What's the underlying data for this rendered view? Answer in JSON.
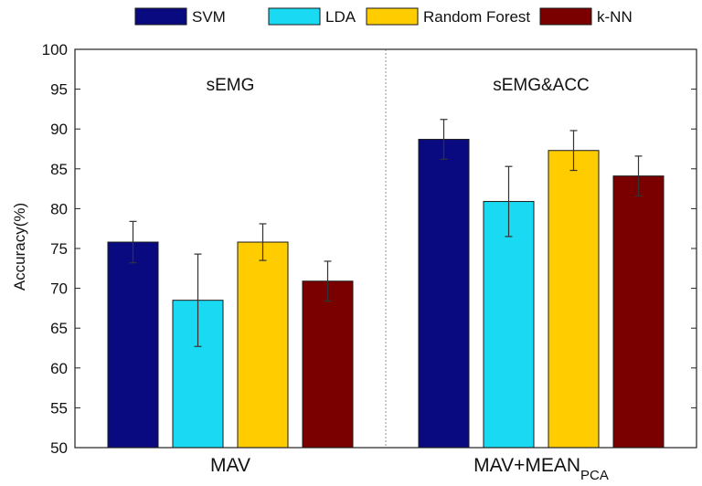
{
  "chart_data": {
    "type": "bar",
    "xlabel": "",
    "ylabel": "Accuracy(%)",
    "ylim": [
      50,
      100
    ],
    "yticks": [
      50,
      55,
      60,
      65,
      70,
      75,
      80,
      85,
      90,
      95,
      100
    ],
    "grid": false,
    "legend_position": "top",
    "panels": [
      {
        "title": "sEMG",
        "category": "MAV",
        "category_subscript": ""
      },
      {
        "title": "sEMG&ACC",
        "category": "MAV+MEAN",
        "category_subscript": "PCA"
      }
    ],
    "series": [
      {
        "name": "SVM",
        "color": "#0a0a80",
        "values": [
          75.8,
          88.7
        ],
        "errors": [
          2.6,
          2.5
        ]
      },
      {
        "name": "LDA",
        "color": "#1ad9f2",
        "values": [
          68.5,
          80.9
        ],
        "errors": [
          5.8,
          4.4
        ]
      },
      {
        "name": "Random Forest",
        "color": "#ffcc00",
        "values": [
          75.8,
          87.3
        ],
        "errors": [
          2.3,
          2.5
        ]
      },
      {
        "name": "k-NN",
        "color": "#7a0000",
        "values": [
          70.9,
          84.1
        ],
        "errors": [
          2.5,
          2.5
        ]
      }
    ]
  }
}
